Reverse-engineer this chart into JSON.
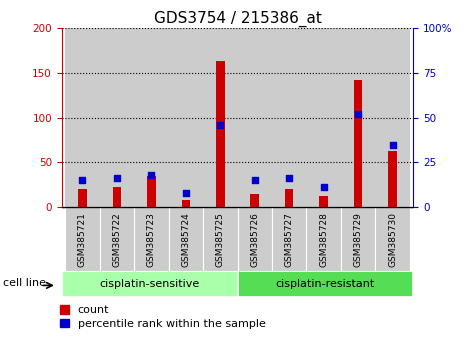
{
  "title": "GDS3754 / 215386_at",
  "samples": [
    "GSM385721",
    "GSM385722",
    "GSM385723",
    "GSM385724",
    "GSM385725",
    "GSM385726",
    "GSM385727",
    "GSM385728",
    "GSM385729",
    "GSM385730"
  ],
  "count": [
    20,
    23,
    35,
    8,
    163,
    15,
    20,
    12,
    142,
    63
  ],
  "percentile": [
    15,
    16,
    18,
    8,
    46,
    15,
    16,
    11,
    52,
    35
  ],
  "groups": [
    {
      "label": "cisplatin-sensitive",
      "start": 0,
      "end": 5,
      "color": "#aaffaa"
    },
    {
      "label": "cisplatin-resistant",
      "start": 5,
      "end": 10,
      "color": "#55dd55"
    }
  ],
  "group_label": "cell line",
  "ylim_left": [
    0,
    200
  ],
  "ylim_right": [
    0,
    100
  ],
  "yticks_left": [
    0,
    50,
    100,
    150,
    200
  ],
  "yticks_right": [
    0,
    25,
    50,
    75,
    100
  ],
  "left_axis_color": "#cc0000",
  "right_axis_color": "#0000cc",
  "bar_color_count": "#cc0000",
  "bar_color_pct": "#0000cc",
  "grid_color": "#000000",
  "bg_plot": "#ffffff",
  "bg_sample": "#cccccc",
  "title_fontsize": 11,
  "tick_fontsize": 7.5,
  "legend_count_label": "count",
  "legend_pct_label": "percentile rank within the sample",
  "bar_width": 0.25,
  "pct_bar_width": 0.12
}
